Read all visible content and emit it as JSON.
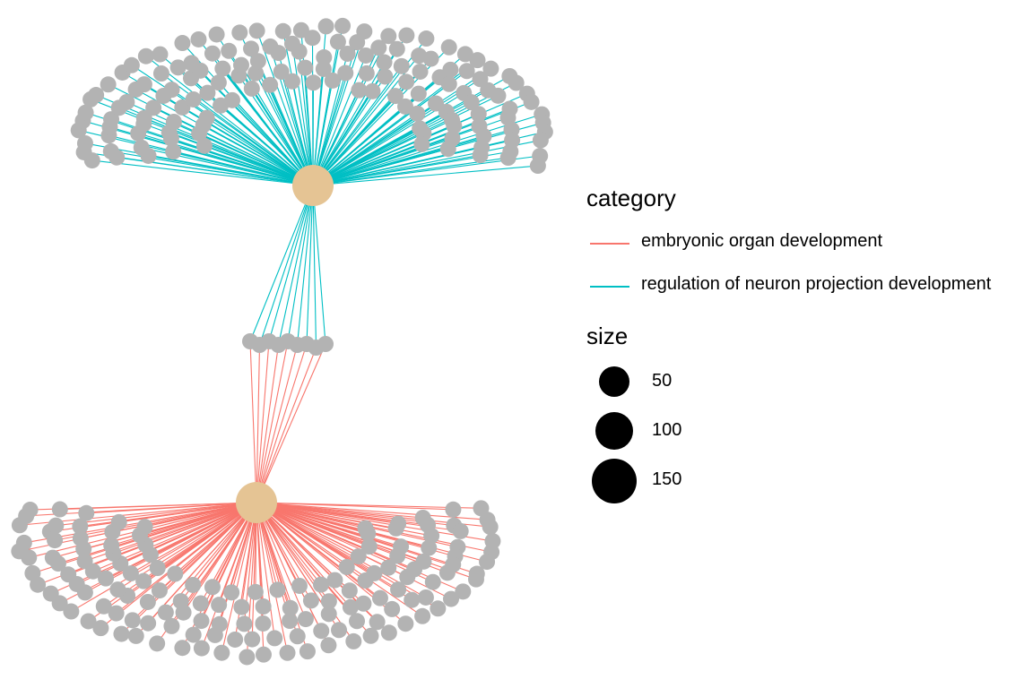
{
  "colors": {
    "background": "#ffffff",
    "node_gene": "#b3b3b3",
    "node_category": "#e5c494",
    "edge_embryonic": "#f8766d",
    "edge_neuron": "#00bfc4"
  },
  "legend": {
    "category_title": "category",
    "categories": [
      {
        "label": "embryonic organ development",
        "color": "#f8766d"
      },
      {
        "label": "regulation of neuron projection development",
        "color": "#00bfc4"
      }
    ],
    "size_title": "size",
    "sizes": [
      {
        "label": "50",
        "value": 50
      },
      {
        "label": "100",
        "value": 100
      },
      {
        "label": "150",
        "value": 150
      }
    ]
  },
  "network": {
    "type": "cnetplot",
    "category_nodes": [
      {
        "id": "regulation of neuron projection development",
        "color": "#00bfc4",
        "gene_count": 150,
        "shared_genes": 9
      },
      {
        "id": "embryonic organ development",
        "color": "#f8766d",
        "gene_count": 150,
        "shared_genes": 9
      }
    ]
  }
}
